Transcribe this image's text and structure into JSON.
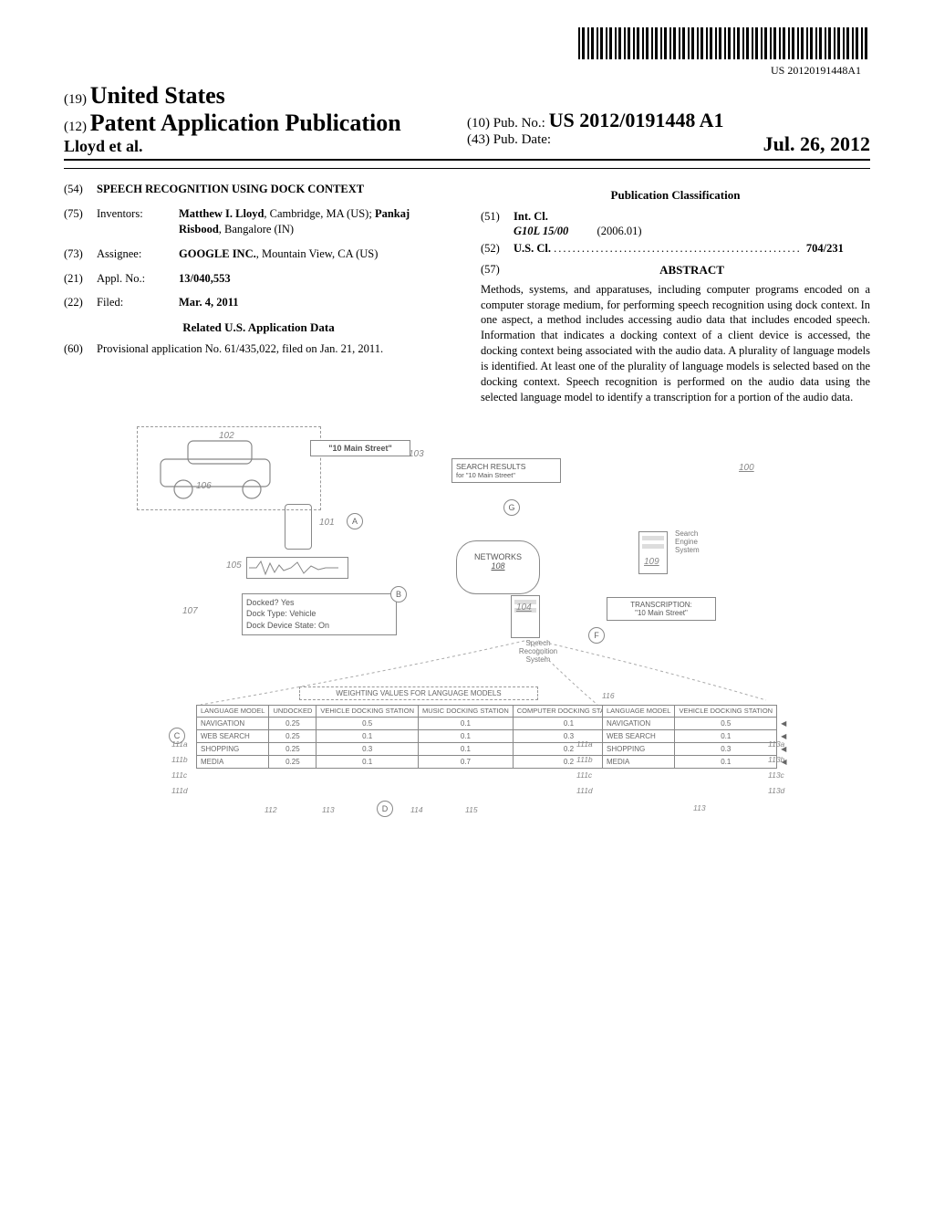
{
  "barcode_number": "US 20120191448A1",
  "header": {
    "us_prefix": "(19)",
    "country": "United States",
    "pub_prefix": "(12)",
    "pub_title": "Patent Application Publication",
    "authors": "Lloyd et al.",
    "pubno_prefix": "(10)",
    "pubno_label": "Pub. No.:",
    "pubno": "US 2012/0191448 A1",
    "date_prefix": "(43)",
    "date_label": "Pub. Date:",
    "date": "Jul. 26, 2012"
  },
  "left": {
    "f54_num": "(54)",
    "f54_title": "SPEECH RECOGNITION USING DOCK CONTEXT",
    "f75_num": "(75)",
    "f75_label": "Inventors:",
    "f75_val_pre": "Matthew I. Lloyd",
    "f75_val_loc1": ", Cambridge, MA (US); ",
    "f75_val_name2": "Pankaj Risbood",
    "f75_val_loc2": ", Bangalore (IN)",
    "f73_num": "(73)",
    "f73_label": "Assignee:",
    "f73_val_name": "GOOGLE INC.",
    "f73_val_loc": ", Mountain View, CA (US)",
    "f21_num": "(21)",
    "f21_label": "Appl. No.:",
    "f21_val": "13/040,553",
    "f22_num": "(22)",
    "f22_label": "Filed:",
    "f22_val": "Mar. 4, 2011",
    "related_head": "Related U.S. Application Data",
    "f60_num": "(60)",
    "f60_val": "Provisional application No. 61/435,022, filed on Jan. 21, 2011."
  },
  "right": {
    "class_head": "Publication Classification",
    "f51_num": "(51)",
    "f51_label": "Int. Cl.",
    "f51_code": "G10L 15/00",
    "f51_date": "(2006.01)",
    "f52_num": "(52)",
    "f52_label": "U.S. Cl.",
    "f52_val": "704/231",
    "f57_num": "(57)",
    "f57_label": "ABSTRACT",
    "abstract": "Methods, systems, and apparatuses, including computer programs encoded on a computer storage medium, for performing speech recognition using dock context. In one aspect, a method includes accessing audio data that includes encoded speech. Information that indicates a docking context of a client device is accessed, the docking context being associated with the audio data. A plurality of language models is identified. At least one of the plurality of language models is selected based on the docking context. Speech recognition is performed on the audio data using the selected language model to identify a transcription for a portion of the audio data."
  },
  "figure": {
    "ref_100": "100",
    "ref_101": "101",
    "ref_102": "102",
    "ref_103": "103",
    "ref_104": "104",
    "ref_105": "105",
    "ref_106": "106",
    "ref_107": "107",
    "ref_108": "108",
    "ref_109": "109",
    "ref_112": "112",
    "ref_113": "113",
    "ref_114": "114",
    "ref_115": "115",
    "ref_116": "116",
    "ref_111a": "111a",
    "ref_111b": "111b",
    "ref_111c": "111c",
    "ref_111d": "111d",
    "ref_113a": "113a",
    "ref_113b": "113b",
    "ref_113c": "113c",
    "ref_113d": "113d",
    "speech_bubble": "\"10 Main Street\"",
    "search_results_title": "SEARCH RESULTS",
    "search_results_sub": "for \"10 Main Street\"",
    "networks": "NETWORKS",
    "search_engine": "Search Engine System",
    "speech_rec": "Speech Recognition System",
    "transcription_label": "TRANSCRIPTION:",
    "transcription_val": "\"10 Main Street\"",
    "dock_l1": "Docked? Yes",
    "dock_l2": "Dock Type: Vehicle",
    "dock_l3": "Dock Device State:  On",
    "weights_title": "WEIGHTING VALUES FOR LANGUAGE MODELS",
    "col_lm": "LANGUAGE MODEL",
    "col_undocked": "UNDOCKED",
    "col_vehicle": "VEHICLE DOCKING STATION",
    "col_music": "MUSIC DOCKING STATION",
    "col_computer": "COMPUTER DOCKING STATION",
    "row_nav": "NAVIGATION",
    "row_web": "WEB SEARCH",
    "row_shop": "SHOPPING",
    "row_media": "MEDIA",
    "weights_data": [
      [
        "0.25",
        "0.5",
        "0.1",
        "0.1"
      ],
      [
        "0.25",
        "0.1",
        "0.1",
        "0.3"
      ],
      [
        "0.25",
        "0.3",
        "0.1",
        "0.2"
      ],
      [
        "0.25",
        "0.1",
        "0.7",
        "0.2"
      ]
    ],
    "side_title_lm": "LANGUAGE MODEL",
    "side_title_veh": "VEHICLE DOCKING STATION",
    "side_data": [
      [
        "NAVIGATION",
        "0.5"
      ],
      [
        "WEB SEARCH",
        "0.1"
      ],
      [
        "SHOPPING",
        "0.3"
      ],
      [
        "MEDIA",
        "0.1"
      ]
    ]
  }
}
